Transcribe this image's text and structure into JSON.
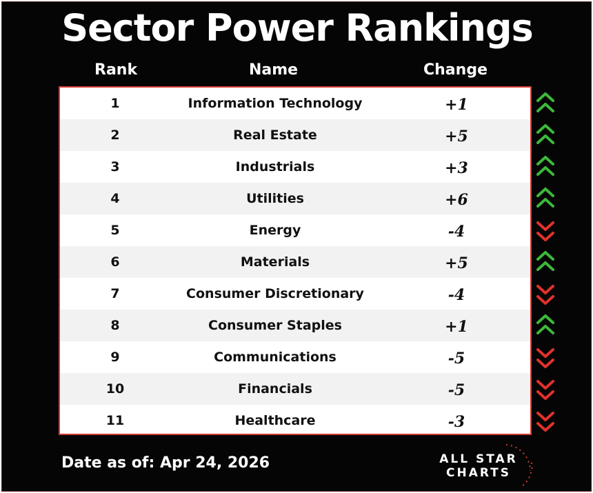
{
  "title": "Sector Power Rankings",
  "headers": {
    "rank": "Rank",
    "name": "Name",
    "change": "Change"
  },
  "rows": [
    {
      "rank": "1",
      "name": "Information Technology",
      "change": "+1",
      "direction": "up"
    },
    {
      "rank": "2",
      "name": "Real Estate",
      "change": "+5",
      "direction": "up"
    },
    {
      "rank": "3",
      "name": "Industrials",
      "change": "+3",
      "direction": "up"
    },
    {
      "rank": "4",
      "name": "Utilities",
      "change": "+6",
      "direction": "up"
    },
    {
      "rank": "5",
      "name": "Energy",
      "change": "-4",
      "direction": "down"
    },
    {
      "rank": "6",
      "name": "Materials",
      "change": "+5",
      "direction": "up"
    },
    {
      "rank": "7",
      "name": "Consumer Discretionary",
      "change": "-4",
      "direction": "down"
    },
    {
      "rank": "8",
      "name": "Consumer Staples",
      "change": "+1",
      "direction": "up"
    },
    {
      "rank": "9",
      "name": "Communications",
      "change": "-5",
      "direction": "down"
    },
    {
      "rank": "10",
      "name": "Financials",
      "change": "-5",
      "direction": "down"
    },
    {
      "rank": "11",
      "name": "Healthcare",
      "change": "-3",
      "direction": "down"
    }
  ],
  "footer": {
    "date_label": "Date as of: Apr 24, 2026"
  },
  "logo": {
    "line1": "ALL STAR",
    "line2": "CHARTS"
  },
  "colors": {
    "background": "#050505",
    "accent_red": "#d33a34",
    "up_green": "#3db83a",
    "down_red": "#e0322b",
    "row_alt": "#f2f2f2"
  },
  "icons": {
    "up": "double-chevron-up-icon",
    "down": "double-chevron-down-icon"
  }
}
